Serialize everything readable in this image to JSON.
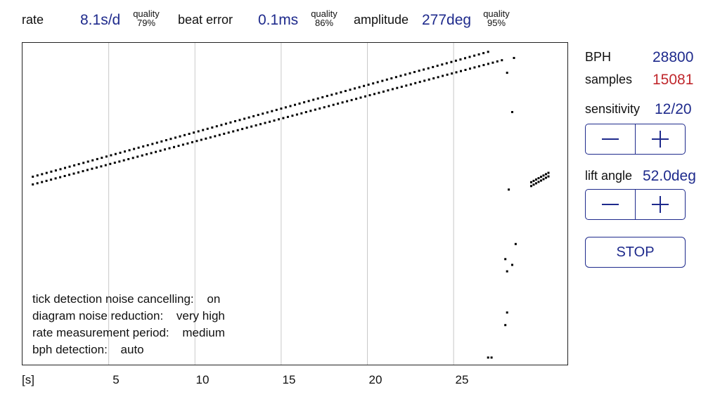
{
  "header": {
    "rate_label": "rate",
    "rate_value": "8.1s/d",
    "rate_quality_label": "quality",
    "rate_quality_value": "79%",
    "beat_error_label": "beat error",
    "beat_error_value": "0.1ms",
    "beat_quality_label": "quality",
    "beat_quality_value": "86%",
    "amplitude_label": "amplitude",
    "amplitude_value": "277deg",
    "amplitude_quality_label": "quality",
    "amplitude_quality_value": "95%"
  },
  "panel": {
    "bph_label": "BPH",
    "bph_value": "28800",
    "samples_label": "samples",
    "samples_value": "15081",
    "sensitivity_label": "sensitivity",
    "sensitivity_value": "12/20",
    "lift_angle_label": "lift angle",
    "lift_angle_value": "52.0deg",
    "stop_label": "STOP"
  },
  "info": {
    "line1_label": "tick detection noise cancelling:",
    "line1_value": "on",
    "line2_label": "diagram noise reduction:",
    "line2_value": "very high",
    "line3_label": "rate measurement period:",
    "line3_value": "medium",
    "line4_label": "bph detection:",
    "line4_value": "auto"
  },
  "colors": {
    "accent": "#1e2a8c",
    "samples": "#c0282d",
    "dots": "#000000",
    "grid": "#c8c8c8"
  },
  "chart_data": {
    "type": "scatter",
    "xlabel": "[s]",
    "x_ticks": [
      "5",
      "10",
      "15",
      "20",
      "25"
    ],
    "xlim": [
      0,
      31.6
    ],
    "ylim": [
      0,
      1
    ],
    "grid": "vertical",
    "series": [
      {
        "x_start": 0.6,
        "x_end": 27.0,
        "y_start": 0.584,
        "y_end": 0.972,
        "n": 100
      },
      {
        "x_start": 0.6,
        "x_end": 27.8,
        "y_start": 0.56,
        "y_end": 0.946,
        "n": 104
      },
      {
        "x_start": 29.5,
        "x_end": 30.5,
        "y_start": 0.555,
        "y_end": 0.585,
        "n": 8
      },
      {
        "x_start": 29.5,
        "x_end": 30.5,
        "y_start": 0.567,
        "y_end": 0.596,
        "n": 8
      }
    ],
    "scattered_points": [
      [
        28.5,
        0.953
      ],
      [
        28.1,
        0.907
      ],
      [
        28.4,
        0.785
      ],
      [
        28.2,
        0.544
      ],
      [
        28.6,
        0.375
      ],
      [
        28.0,
        0.328
      ],
      [
        28.4,
        0.31
      ],
      [
        28.1,
        0.29
      ],
      [
        28.1,
        0.162
      ],
      [
        28.0,
        0.123
      ],
      [
        27.0,
        0.022
      ],
      [
        27.2,
        0.022
      ]
    ]
  }
}
